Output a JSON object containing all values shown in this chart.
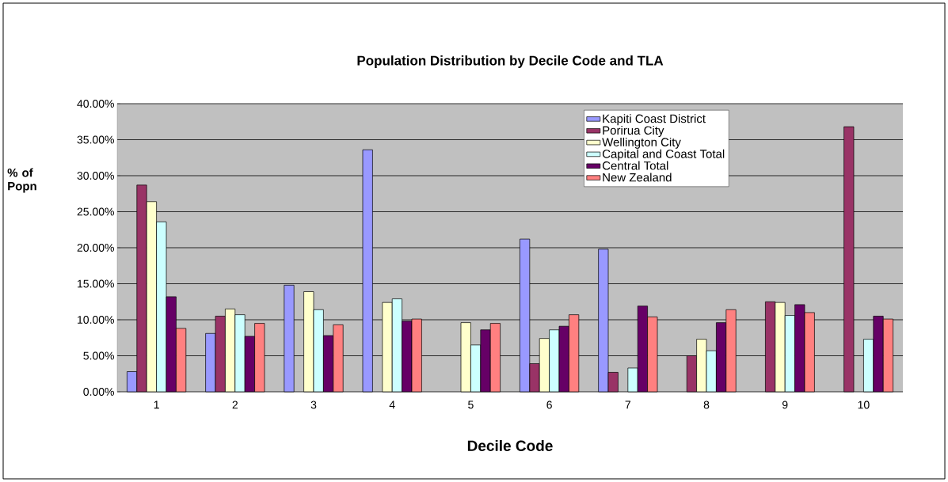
{
  "chart_data": {
    "type": "bar",
    "title": "Population Distribution by Decile Code and TLA",
    "xlabel": "Decile Code",
    "ylabel": "% of Popn",
    "categories": [
      "1",
      "2",
      "3",
      "4",
      "5",
      "6",
      "7",
      "8",
      "9",
      "10"
    ],
    "series": [
      {
        "name": "Kapiti Coast District",
        "color": "#9999ff",
        "values": [
          2.8,
          8.1,
          14.8,
          33.6,
          null,
          21.2,
          19.8,
          null,
          null,
          null
        ]
      },
      {
        "name": "Porirua City",
        "color": "#993366",
        "values": [
          28.7,
          10.5,
          null,
          null,
          null,
          3.9,
          2.7,
          5.0,
          12.5,
          36.8
        ]
      },
      {
        "name": "Wellington City",
        "color": "#ffffcc",
        "values": [
          26.4,
          11.5,
          13.9,
          12.4,
          9.6,
          7.4,
          null,
          7.3,
          12.4,
          null
        ]
      },
      {
        "name": "Capital and Coast Total",
        "color": "#ccffff",
        "values": [
          23.6,
          10.7,
          11.4,
          12.9,
          6.5,
          8.6,
          3.3,
          5.7,
          10.6,
          7.3
        ]
      },
      {
        "name": "Central Total",
        "color": "#660066",
        "values": [
          13.2,
          7.7,
          7.8,
          9.8,
          8.6,
          9.1,
          11.9,
          9.6,
          12.1,
          10.5
        ]
      },
      {
        "name": "New Zealand",
        "color": "#ff8080",
        "values": [
          8.8,
          9.5,
          9.3,
          10.1,
          9.5,
          10.7,
          10.4,
          11.4,
          11.0,
          10.1
        ]
      }
    ],
    "ylim": [
      0,
      40
    ],
    "yticks": [
      {
        "value": 0,
        "label": "0.00%"
      },
      {
        "value": 5,
        "label": "5.00%"
      },
      {
        "value": 10,
        "label": "10.00%"
      },
      {
        "value": 15,
        "label": "15.00%"
      },
      {
        "value": 20,
        "label": "20.00%"
      },
      {
        "value": 25,
        "label": "25.00%"
      },
      {
        "value": 30,
        "label": "30.00%"
      },
      {
        "value": 35,
        "label": "35.00%"
      },
      {
        "value": 40,
        "label": "40.00%"
      }
    ],
    "grid": "y",
    "legend": "top right"
  }
}
